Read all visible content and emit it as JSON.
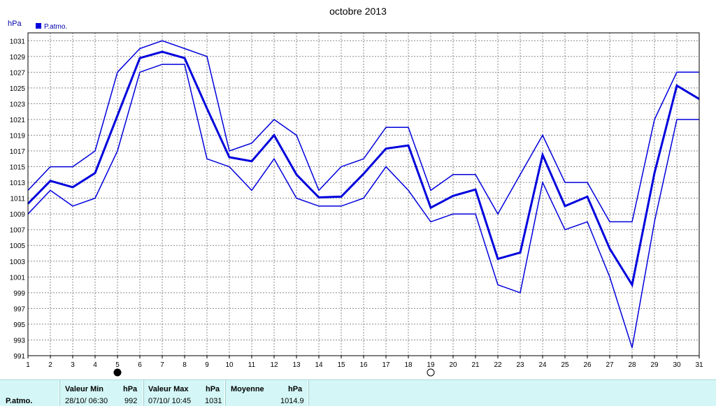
{
  "chart_data": {
    "type": "line",
    "title": "octobre 2013",
    "ylabel": "hPa",
    "legend": "P.atmo.",
    "legend_position": "top-left",
    "grid": true,
    "x": [
      1,
      2,
      3,
      4,
      5,
      6,
      7,
      8,
      9,
      10,
      11,
      12,
      13,
      14,
      15,
      16,
      17,
      18,
      19,
      20,
      21,
      22,
      23,
      24,
      25,
      26,
      27,
      28,
      29,
      30,
      31
    ],
    "ylim": [
      991,
      1032
    ],
    "yticks": [
      991,
      993,
      995,
      997,
      999,
      1001,
      1003,
      1005,
      1007,
      1009,
      1011,
      1013,
      1015,
      1017,
      1019,
      1021,
      1023,
      1025,
      1027,
      1029,
      1031
    ],
    "series": [
      {
        "role": "max",
        "values": [
          1012,
          1015,
          1015,
          1017,
          1027,
          1030,
          1031,
          1030,
          1029,
          1017,
          1018,
          1021,
          1019,
          1012,
          1015,
          1016,
          1020,
          1020,
          1012,
          1014,
          1014,
          1009,
          1014,
          1019,
          1013,
          1013,
          1008,
          1008,
          1021,
          1027,
          1027
        ]
      },
      {
        "role": "mean",
        "values": [
          1010.3,
          1013.2,
          1012.4,
          1014.2,
          1021.5,
          1028.8,
          1029.6,
          1028.8,
          1022.4,
          1016.2,
          1015.7,
          1019,
          1014,
          1011.1,
          1011.2,
          1014.1,
          1017.3,
          1017.7,
          1009.8,
          1011.3,
          1012.1,
          1003.3,
          1004.1,
          1016.5,
          1010,
          1011.2,
          1004.6,
          1000,
          1014.2,
          1025.3,
          1023.6
        ]
      },
      {
        "role": "min",
        "values": [
          1009,
          1012,
          1010,
          1011,
          1017,
          1027,
          1028,
          1028,
          1016,
          1015,
          1012,
          1016,
          1011,
          1010,
          1010,
          1011,
          1015,
          1012,
          1008,
          1009,
          1009,
          1000,
          999,
          1013,
          1007,
          1008,
          1001,
          992,
          1008,
          1021,
          1021
        ]
      }
    ],
    "moon_phases": [
      {
        "day": 5,
        "phase": "new"
      },
      {
        "day": 19,
        "phase": "full"
      }
    ]
  },
  "colors": {
    "series": "#0000dd",
    "grid": "#8a8a8a",
    "footer_bg": "#d4f6f6"
  },
  "summary": {
    "row_label": "P.atmo.",
    "min_header": "Valeur Min",
    "max_header": "Valeur Max",
    "mean_header": "Moyenne",
    "unit": "hPa",
    "min_date": "28/10/  06:30",
    "min_value": "992",
    "max_date": "07/10/  10:45",
    "max_value": "1031",
    "mean_value": "1014.9"
  }
}
